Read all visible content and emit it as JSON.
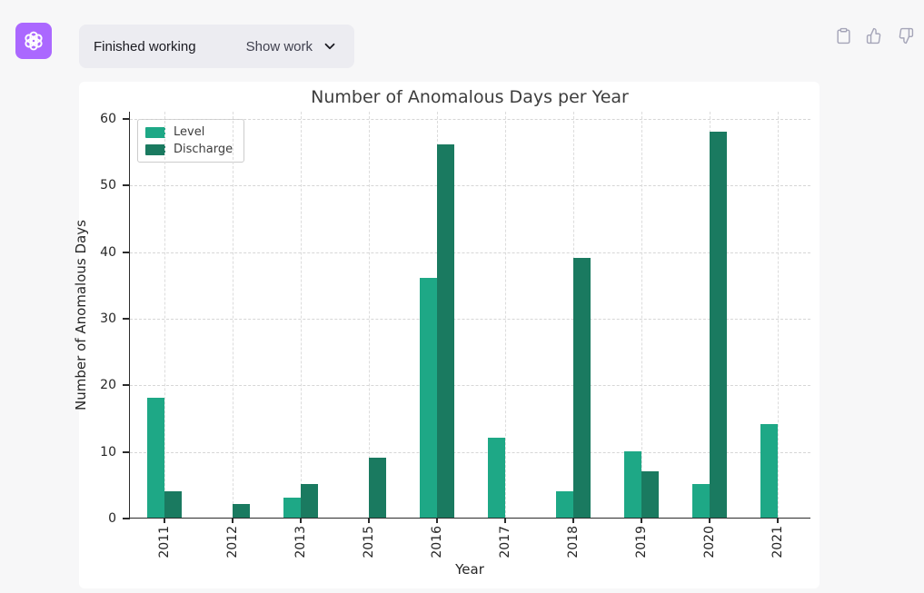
{
  "header": {
    "status": "Finished working",
    "show_work": "Show work",
    "logo_icon": "chatgpt-logo",
    "expand_icon": "chevron-down"
  },
  "message_actions": {
    "copy_icon": "clipboard",
    "like_icon": "thumbs-up",
    "dislike_icon": "thumbs-down"
  },
  "colors": {
    "brand_purple": "#ab68ff",
    "icon_gray": "#a5a5b8",
    "level_green": "#1ea886",
    "discharge_green": "#1a7a60"
  },
  "chart_data": {
    "type": "bar",
    "title": "Number of Anomalous Days per Year",
    "xlabel": "Year",
    "ylabel": "Number of Anomalous Days",
    "categories": [
      "2011",
      "2012",
      "2013",
      "2015",
      "2016",
      "2017",
      "2018",
      "2019",
      "2020",
      "2021"
    ],
    "series": [
      {
        "name": "Level",
        "color": "#1ea886",
        "values": [
          18,
          0,
          3,
          0,
          36,
          12,
          4,
          10,
          5,
          14
        ]
      },
      {
        "name": "Discharge",
        "color": "#1a7a60",
        "values": [
          4,
          2,
          5,
          9,
          56,
          0,
          39,
          7,
          58,
          0
        ]
      }
    ],
    "ylim": [
      0,
      60
    ],
    "ytick_step": 10,
    "grid": "dashed-both-axes",
    "legend_position": "upper-left"
  }
}
